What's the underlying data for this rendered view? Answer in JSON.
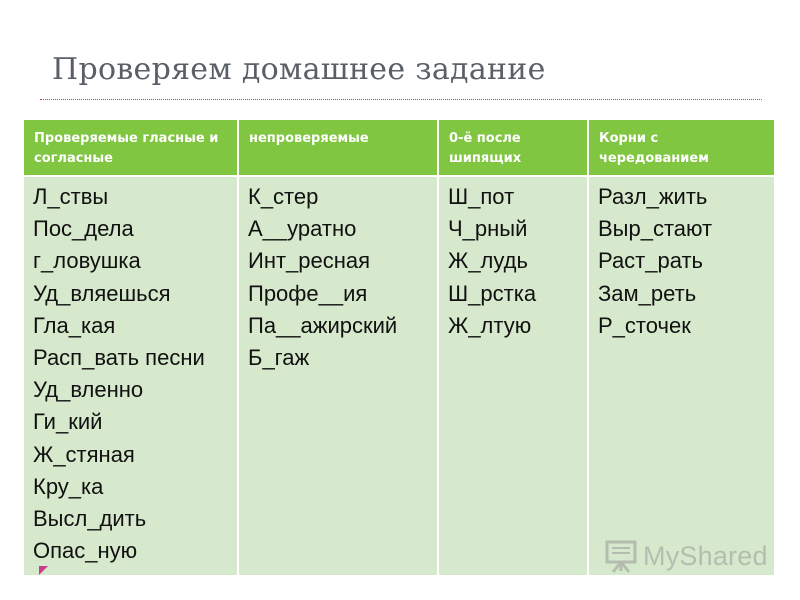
{
  "title": "Проверяем домашнее задание",
  "table": {
    "headers": [
      "Проверяемые гласные и согласные",
      "непроверяемые",
      "0-ё после шипящих",
      "Корни с чередованием"
    ],
    "columns": [
      [
        "Л_ствы",
        "Пос_дела",
        "г_ловушка",
        "Уд_вляешься",
        "Гла_кая",
        "Расп_вать песни",
        "Уд_вленно",
        "Ги_кий",
        "Ж_стяная",
        "Кру_ка",
        "Высл_дить",
        "Опас_ную"
      ],
      [
        "К_стер",
        "А__уратно",
        "Инт_ресная",
        "Профе__ия",
        "Па__ажирский",
        "Б_гаж"
      ],
      [
        "Ш_пот",
        "Ч_рный",
        "Ж_лудь",
        "Ш_рстка",
        "Ж_лтую"
      ],
      [
        "Разл_жить",
        "Выр_стают",
        "Раст_рать",
        "Зам_реть",
        "Р_сточек"
      ]
    ]
  },
  "watermark": {
    "text": "MyShared",
    "icon": "presentation-board-icon"
  },
  "colors": {
    "header_bg": "#80c641",
    "body_bg": "#d6e9cc",
    "title": "#595f66",
    "rule": "#c03a6a",
    "accent_arrow": "#c93d8a"
  }
}
